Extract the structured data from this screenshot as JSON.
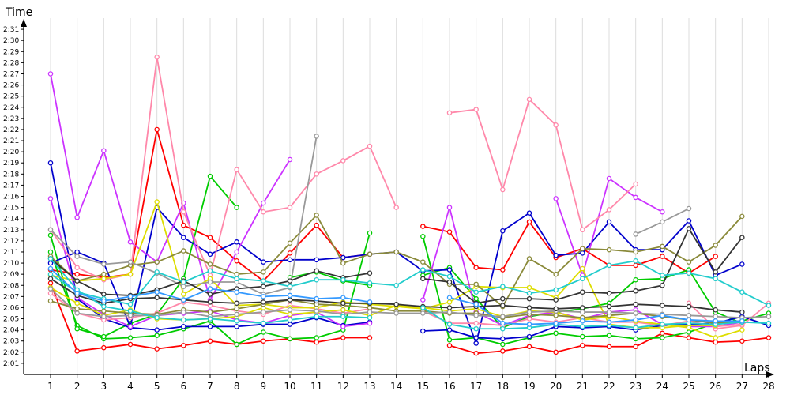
{
  "chart_data": {
    "type": "line",
    "title": "",
    "xlabel": "Laps",
    "ylabel": "Time",
    "grid": true,
    "xlim": [
      1,
      28
    ],
    "ylim": [
      120,
      152
    ],
    "x": [
      1,
      2,
      3,
      4,
      5,
      6,
      7,
      8,
      9,
      10,
      11,
      12,
      13,
      14,
      15,
      16,
      17,
      18,
      19,
      20,
      21,
      22,
      23,
      24,
      25,
      26,
      27,
      28
    ],
    "x_tick_labels": [
      "1",
      "2",
      "3",
      "4",
      "5",
      "6",
      "7",
      "8",
      "9",
      "10",
      "11",
      "12",
      "13",
      "14",
      "15",
      "16",
      "17",
      "18",
      "19",
      "20",
      "21",
      "22",
      "23",
      "24",
      "25",
      "26",
      "27",
      "28"
    ],
    "y_ticks": [
      121,
      122,
      123,
      124,
      125,
      126,
      127,
      128,
      129,
      130,
      131,
      132,
      133,
      134,
      135,
      136,
      137,
      138,
      139,
      140,
      141,
      142,
      143,
      144,
      145,
      146,
      147,
      148,
      149,
      150,
      151
    ],
    "y_tick_labels": [
      "2:01",
      "2:02",
      "2:03",
      "2:04",
      "2:05",
      "2:06",
      "2:07",
      "2:08",
      "2:09",
      "2:10",
      "2:11",
      "2:12",
      "2:13",
      "2:14",
      "2:15",
      "2:16",
      "2:17",
      "2:18",
      "2:19",
      "2:20",
      "2:21",
      "2:22",
      "2:23",
      "2:24",
      "2:25",
      "2:26",
      "2:27",
      "2:28",
      "2:29",
      "2:30",
      "2:31"
    ],
    "series": [
      {
        "color": "#ff0000",
        "values": [
          128.2,
          122.1,
          122.4,
          122.7,
          122.3,
          122.6,
          123.0,
          122.7,
          123.0,
          123.2,
          122.9,
          123.3,
          123.3,
          null,
          null,
          122.6,
          121.9,
          122.1,
          122.5,
          122.0,
          122.6,
          122.5,
          122.5,
          123.7,
          123.3,
          122.9,
          123.0,
          123.3
        ]
      },
      {
        "color": "#ff0000",
        "values": [
          129.4,
          129.0,
          128.7,
          129.0,
          142.0,
          133.4,
          132.3,
          130.2,
          128.4,
          130.9,
          133.4,
          130.5,
          130.8,
          null,
          133.3,
          132.8,
          129.6,
          129.4,
          133.7,
          130.5,
          131.3,
          129.8,
          129.8,
          130.6,
          129.1,
          130.6,
          null,
          null
        ]
      },
      {
        "color": "#00cc00",
        "values": [
          131.0,
          124.4,
          123.2,
          123.3,
          123.5,
          124.1,
          124.8,
          122.7,
          123.8,
          123.2,
          123.3,
          124.0,
          132.7,
          null,
          132.4,
          123.1,
          123.3,
          122.7,
          123.3,
          123.7,
          123.4,
          123.5,
          123.2,
          123.3,
          123.8,
          124.6,
          124.8,
          125.5
        ]
      },
      {
        "color": "#00cc00",
        "values": [
          132.5,
          124.1,
          123.4,
          124.6,
          125.4,
          128.6,
          137.8,
          135.0,
          null,
          128.7,
          129.2,
          128.4,
          128.0,
          null,
          128.9,
          129.6,
          126.8,
          124.2,
          125.2,
          125.6,
          125.9,
          126.4,
          128.5,
          128.6,
          129.4,
          125.6,
          124.6,
          null
        ]
      },
      {
        "color": "#0000cc",
        "values": [
          130.0,
          131.0,
          130.0,
          124.3,
          135.0,
          132.3,
          130.8,
          131.9,
          130.1,
          130.3,
          130.3,
          130.5,
          130.8,
          131.0,
          129.3,
          129.4,
          122.8,
          132.9,
          134.5,
          130.7,
          130.9,
          133.7,
          131.2,
          131.2,
          133.8,
          128.9,
          129.9,
          null
        ]
      },
      {
        "color": "#0000cc",
        "values": [
          139.0,
          126.8,
          125.0,
          124.2,
          124.0,
          124.3,
          124.3,
          124.3,
          124.5,
          124.5,
          125.1,
          124.4,
          124.7,
          null,
          123.9,
          124.0,
          123.3,
          123.2,
          123.4,
          124.3,
          124.2,
          124.3,
          124.0,
          124.4,
          124.5,
          124.6,
          125.2,
          124.4
        ]
      },
      {
        "color": "#cc33ff",
        "values": [
          147.0,
          134.1,
          140.1,
          131.9,
          130.1,
          135.4,
          126.7,
          131.0,
          135.4,
          139.3,
          null,
          null,
          null,
          null,
          null,
          null,
          null,
          null,
          null,
          135.8,
          128.9,
          137.6,
          135.9,
          134.6,
          null,
          null,
          null,
          null
        ]
      },
      {
        "color": "#cc33ff",
        "values": [
          135.8,
          126.9,
          125.4,
          124.3,
          125.3,
          125.5,
          125.7,
          124.9,
          124.6,
          125.3,
          125.6,
          124.3,
          124.6,
          null,
          126.7,
          135.0,
          125.6,
          124.4,
          125.3,
          125.6,
          125.0,
          125.6,
          125.8,
          124.5,
          124.3,
          124.3,
          124.7,
          null
        ]
      },
      {
        "color": "#ff88aa",
        "values": [
          133.0,
          129.6,
          128.5,
          129.0,
          148.5,
          134.6,
          128.9,
          138.4,
          134.6,
          135.0,
          138.0,
          139.2,
          140.5,
          135.0,
          null,
          143.5,
          143.8,
          136.6,
          144.7,
          142.4,
          133.0,
          134.8,
          137.1,
          null,
          126.4,
          124.1,
          124.4,
          126.4
        ]
      },
      {
        "color": "#ff88aa",
        "values": [
          127.3,
          125.5,
          124.9,
          125.1,
          125.5,
          126.5,
          126.2,
          125.7,
          125.4,
          126.2,
          125.9,
          125.5,
          125.9,
          null,
          125.7,
          124.6,
          124.6,
          124.4,
          125.0,
          124.7,
          125.1,
          124.7,
          124.7,
          124.4,
          124.8,
          124.3,
          124.5,
          null
        ]
      },
      {
        "color": "#dddd00",
        "values": [
          128.9,
          128.4,
          128.6,
          129.0,
          135.5,
          127.2,
          128.6,
          126.2,
          126.3,
          126.0,
          126.0,
          126.5,
          126.3,
          126.1,
          125.9,
          126.5,
          127.9,
          127.8,
          127.8,
          126.9,
          129.5,
          124.5,
          124.2,
          124.2,
          124.4,
          124.4,
          null,
          null
        ]
      },
      {
        "color": "#dddd00",
        "values": [
          127.8,
          126.4,
          125.3,
          125.8,
          125.0,
          124.9,
          125.0,
          125.2,
          126.0,
          125.4,
          125.6,
          125.8,
          125.3,
          126.2,
          126.0,
          125.7,
          125.9,
          125.2,
          125.7,
          125.6,
          124.9,
          125.2,
          124.8,
          124.5,
          124.2,
          123.3,
          124.0,
          null
        ]
      },
      {
        "color": "#8a8a3a",
        "values": [
          130.6,
          128.4,
          129.0,
          129.8,
          130.1,
          131.1,
          129.9,
          129.0,
          129.2,
          131.8,
          134.3,
          130.0,
          130.8,
          131.0,
          130.1,
          128.1,
          128.1,
          126.1,
          130.4,
          129.0,
          131.3,
          131.2,
          131.0,
          131.5,
          130.1,
          131.6,
          134.2,
          null
        ]
      },
      {
        "color": "#8a8a3a",
        "values": [
          126.6,
          125.9,
          125.7,
          125.5,
          125.4,
          125.8,
          125.6,
          125.9,
          126.3,
          126.7,
          126.3,
          126.2,
          126.0,
          125.7,
          125.7,
          125.5,
          125.5,
          125.1,
          125.4,
          125.3,
          125.1,
          125.3,
          125.5,
          125.2,
          124.9,
          124.6,
          124.7,
          null
        ]
      },
      {
        "color": "#999999",
        "values": [
          133.0,
          130.6,
          129.9,
          130.1,
          129.1,
          127.9,
          128.3,
          128.3,
          127.2,
          127.8,
          141.4,
          null,
          null,
          null,
          null,
          null,
          null,
          null,
          null,
          null,
          null,
          null,
          132.6,
          133.7,
          134.9,
          null,
          null,
          null
        ]
      },
      {
        "color": "#999999",
        "values": [
          127.7,
          125.5,
          125.2,
          125.3,
          125.3,
          125.6,
          125.2,
          125.4,
          125.6,
          125.8,
          125.7,
          125.4,
          125.6,
          125.5,
          125.5,
          125.6,
          125.3,
          125.2,
          125.6,
          125.7,
          125.6,
          125.6,
          125.5,
          125.4,
          125.3,
          125.2,
          125.1,
          125.2
        ]
      },
      {
        "color": "#333333",
        "values": [
          130.4,
          128.4,
          127.2,
          127.1,
          127.6,
          128.4,
          127.2,
          127.7,
          127.9,
          128.4,
          129.3,
          128.7,
          129.1,
          null,
          128.6,
          128.3,
          126.4,
          126.8,
          126.8,
          126.7,
          127.4,
          127.3,
          127.5,
          128.0,
          133.1,
          129.2,
          132.3,
          null
        ]
      },
      {
        "color": "#333333",
        "values": [
          128.6,
          127.1,
          126.4,
          126.8,
          126.9,
          126.7,
          126.5,
          126.4,
          126.5,
          126.7,
          126.6,
          126.4,
          126.4,
          126.3,
          126.1,
          126.0,
          126.1,
          126.2,
          126.0,
          125.9,
          126.0,
          126.1,
          126.3,
          126.2,
          126.1,
          125.8,
          125.6,
          null
        ]
      },
      {
        "color": "#22cccc",
        "values": [
          129.0,
          127.4,
          126.8,
          126.3,
          129.2,
          128.3,
          129.3,
          128.6,
          128.4,
          127.9,
          128.5,
          128.5,
          128.2,
          128.0,
          129.4,
          128.8,
          127.4,
          127.9,
          127.3,
          127.6,
          128.6,
          129.8,
          130.2,
          128.9,
          129.1,
          128.6,
          127.4,
          126.2
        ]
      },
      {
        "color": "#22cccc",
        "values": [
          130.4,
          127.6,
          126.1,
          125.7,
          125.1,
          124.9,
          125.0,
          124.8,
          124.6,
          124.9,
          125.2,
          125.2,
          125.1,
          null,
          126.0,
          124.5,
          124.1,
          124.1,
          124.2,
          124.5,
          124.3,
          124.4,
          124.2,
          124.5,
          124.6,
          124.5,
          124.7,
          124.6
        ]
      },
      {
        "color": "#3399ff",
        "values": [
          129.5,
          127.3,
          126.6,
          127.0,
          127.4,
          126.7,
          127.7,
          127.4,
          127.0,
          127.1,
          126.8,
          126.9,
          126.5,
          null,
          null,
          126.9,
          126.3,
          124.6,
          124.5,
          124.6,
          124.8,
          124.7,
          124.9,
          125.3,
          124.9,
          124.8,
          124.8,
          null
        ]
      }
    ]
  }
}
